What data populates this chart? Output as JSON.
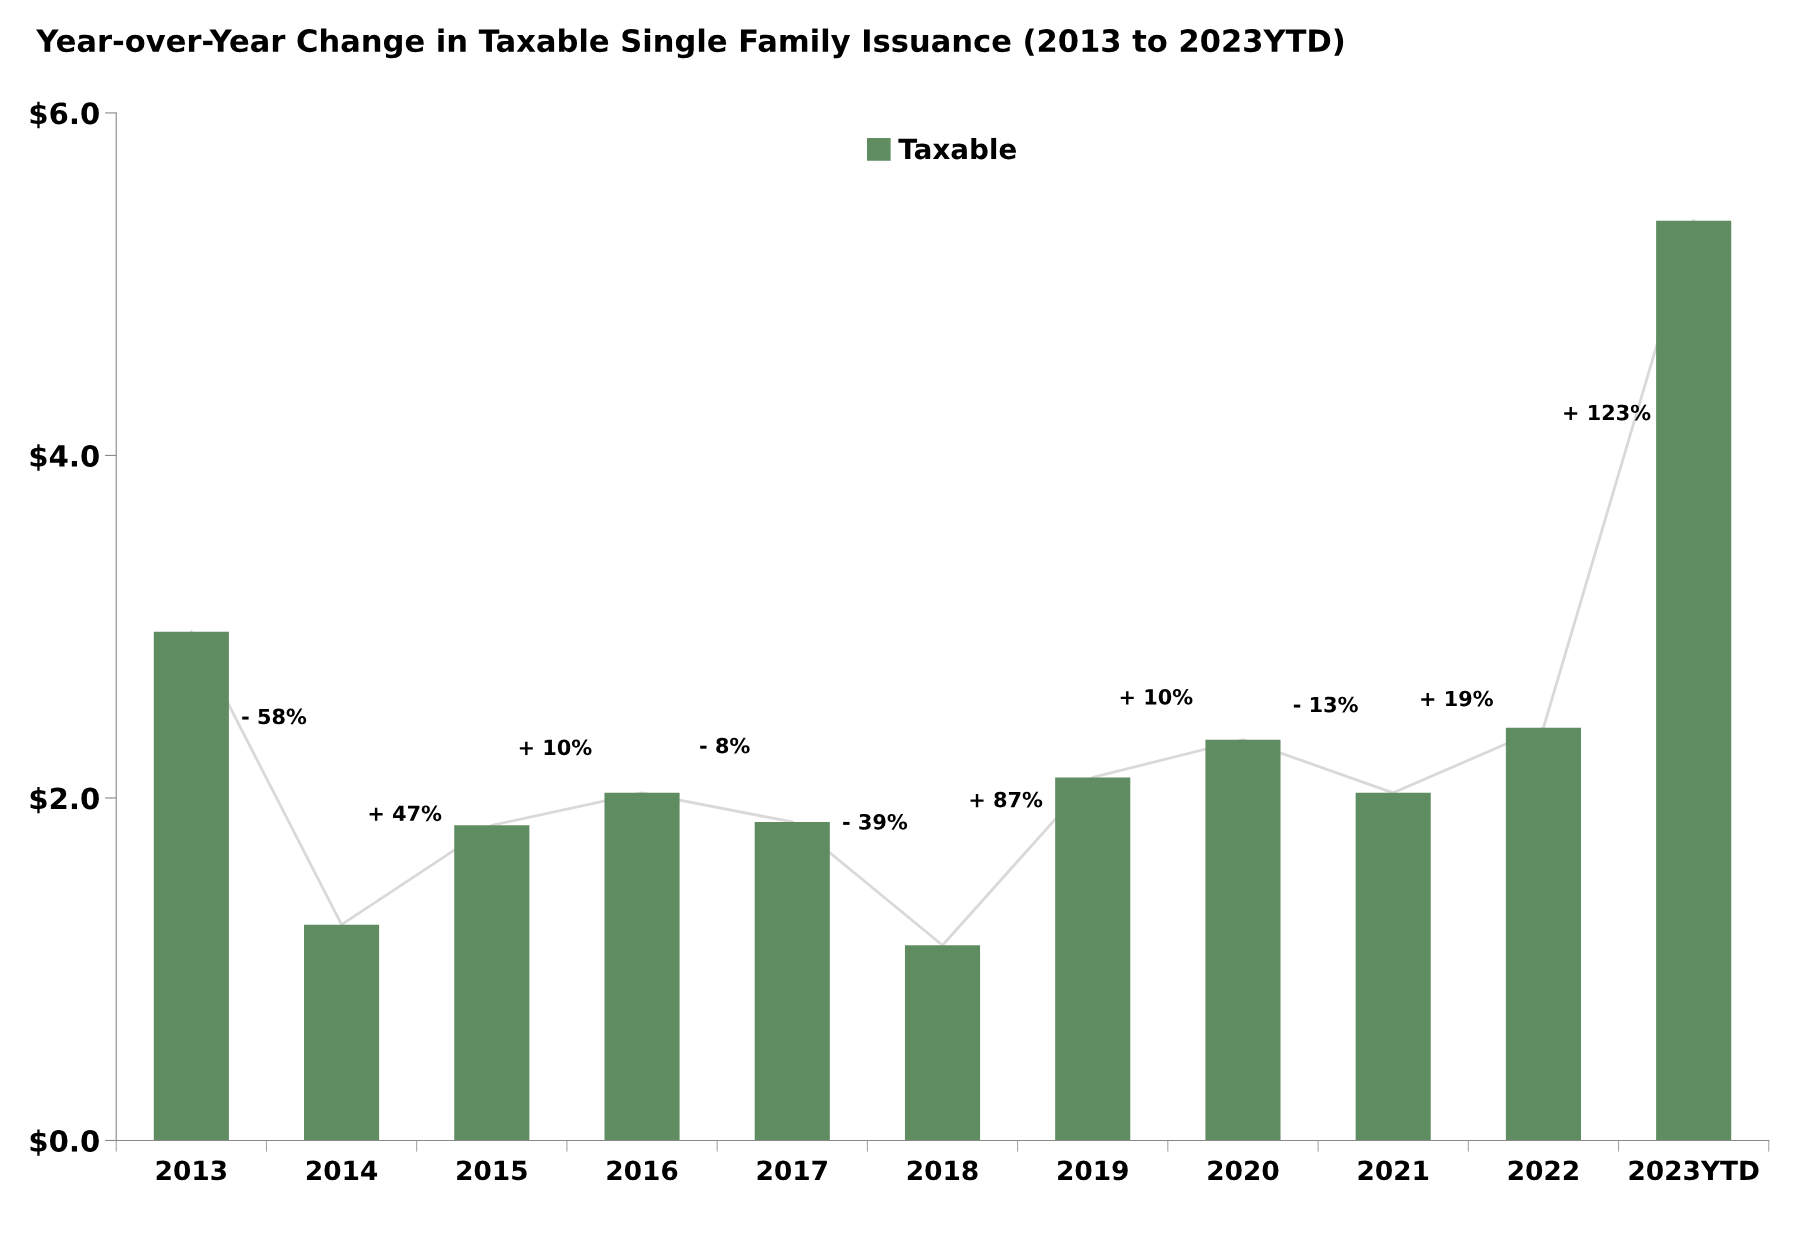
{
  "chart_data": {
    "type": "bar",
    "title": "Year-over-Year Change in Taxable Single Family Issuance (2013 to 2023YTD)",
    "categories": [
      "2013",
      "2014",
      "2015",
      "2016",
      "2017",
      "2018",
      "2019",
      "2020",
      "2021",
      "2022",
      "2023YTD"
    ],
    "series": [
      {
        "name": "Taxable",
        "color": "#5f8c61",
        "values": [
          2.97,
          1.26,
          1.84,
          2.03,
          1.86,
          1.14,
          2.12,
          2.34,
          2.03,
          2.41,
          5.37
        ]
      },
      {
        "type": "line",
        "color": "#d9d9d9",
        "values": [
          2.97,
          1.26,
          1.84,
          2.03,
          1.86,
          1.14,
          2.12,
          2.34,
          2.03,
          2.41,
          5.37
        ]
      }
    ],
    "annotations": [
      "- 58%",
      "+ 47%",
      "+ 10%",
      "- 8%",
      "- 39%",
      "+ 87%",
      "+ 10%",
      "- 13%",
      "+ 19%",
      "+ 123%"
    ],
    "ylim": [
      0,
      6
    ],
    "yticks": [
      {
        "value": 0,
        "label": "$0.0"
      },
      {
        "value": 2,
        "label": "$2.0"
      },
      {
        "value": 4,
        "label": "$4.0"
      },
      {
        "value": 6,
        "label": "$6.0"
      }
    ],
    "grid": false,
    "legend": "top"
  }
}
